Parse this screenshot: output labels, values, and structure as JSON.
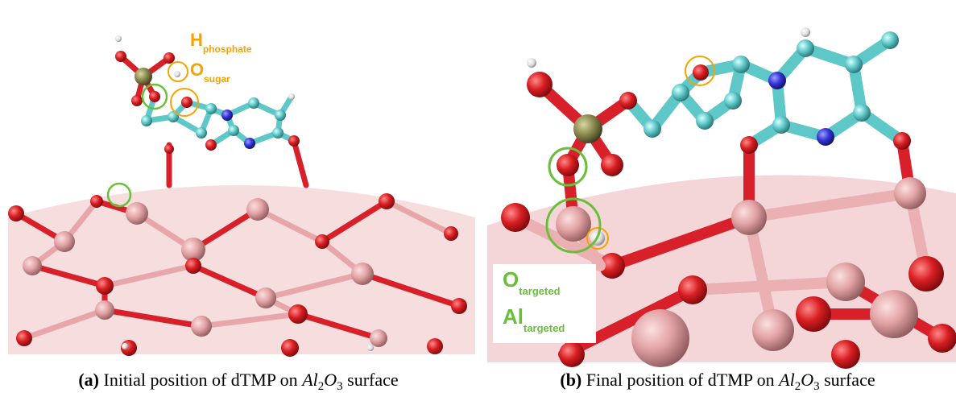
{
  "panels": [
    {
      "labels": [
        {
          "main": "H",
          "sub": "phosphate"
        },
        {
          "main": "O",
          "sub": "sugar"
        }
      ],
      "caption": {
        "tag": "(a)",
        "text": "Initial position of dTMP on",
        "el1": "Al",
        "n1": "2",
        "el2": "O",
        "n2": "3",
        "suffix": "surface"
      }
    },
    {
      "labels": [
        {
          "main": "O",
          "sub": "targeted"
        },
        {
          "main": "Al",
          "sub": "targeted"
        }
      ],
      "caption": {
        "tag": "(b)",
        "text": "Final position of dTMP on",
        "el1": "Al",
        "n1": "2",
        "el2": "O",
        "n2": "3",
        "suffix": "surface"
      }
    }
  ]
}
